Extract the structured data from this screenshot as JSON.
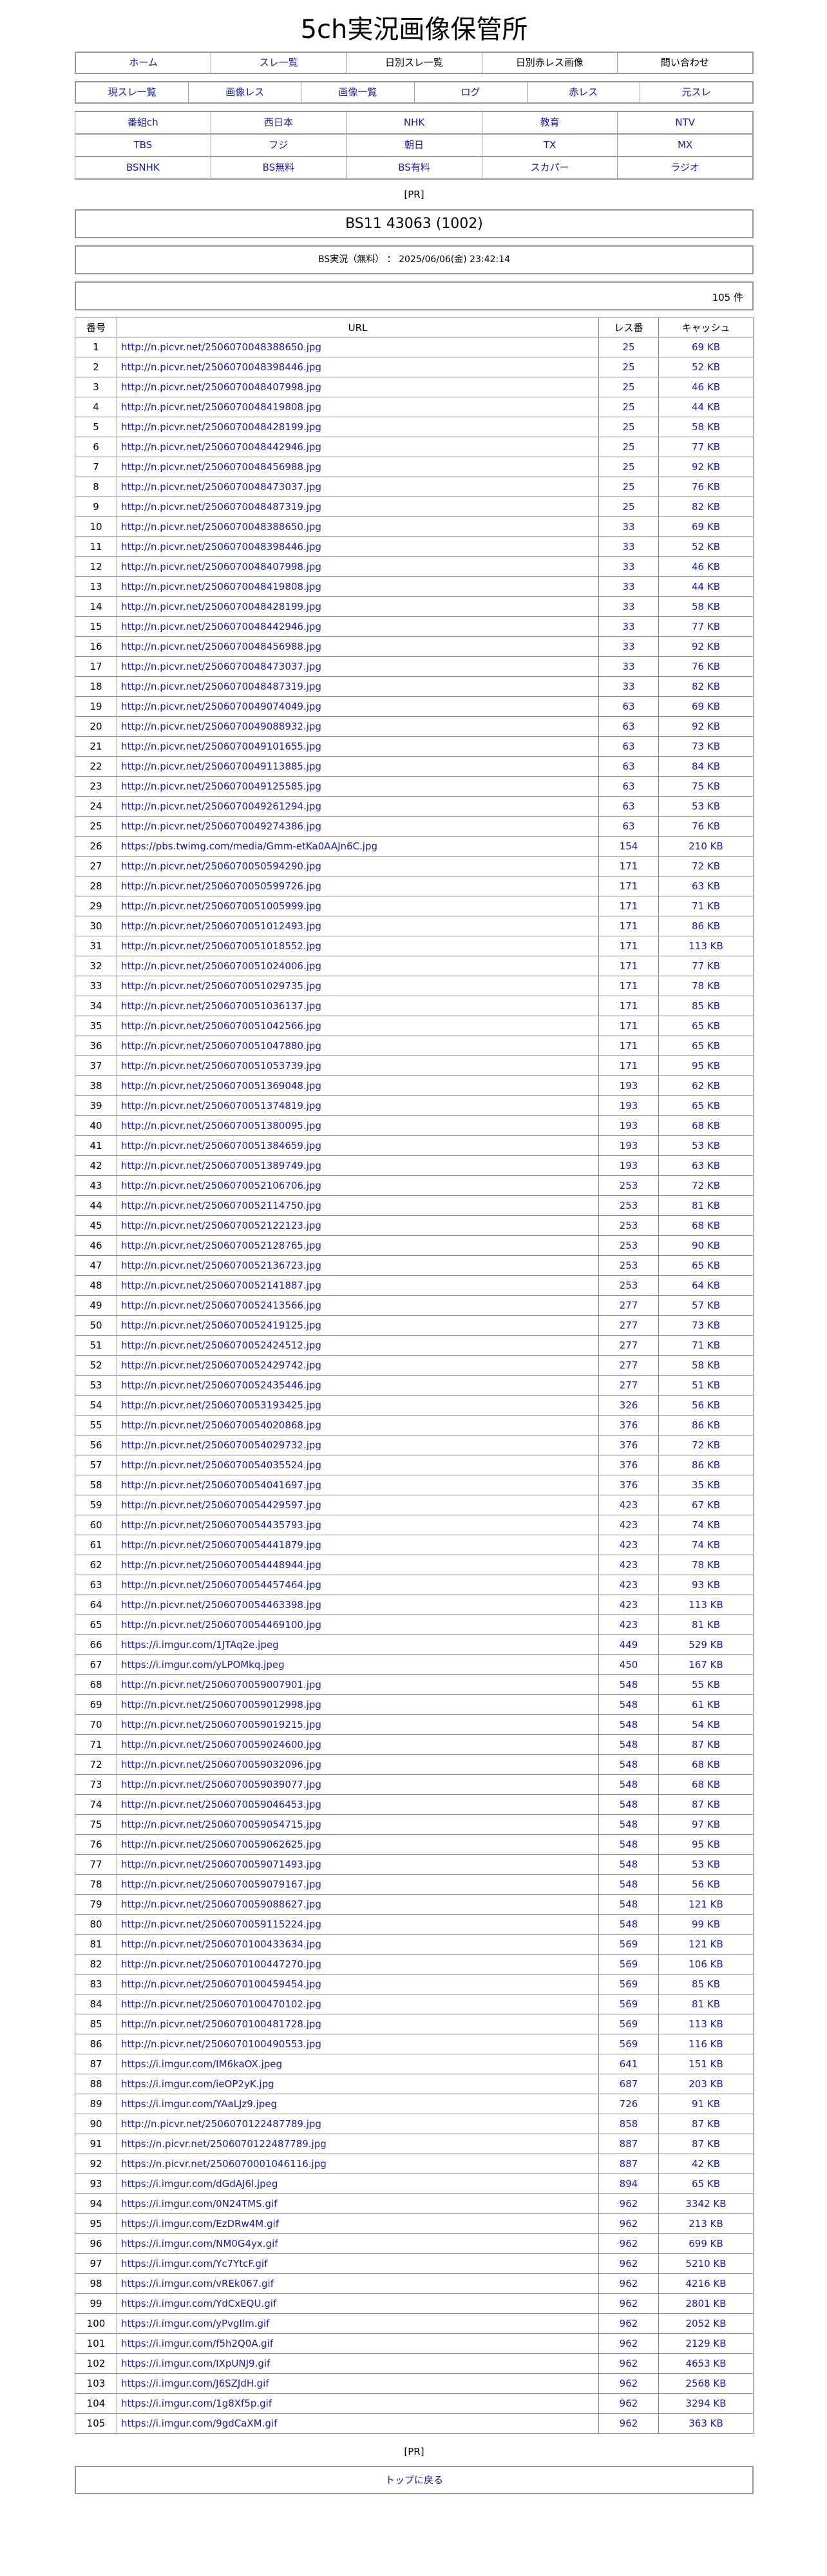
{
  "site_title": "5ch実況画像保管所",
  "nav_main": [
    {
      "label": "ホーム",
      "link": true
    },
    {
      "label": "スレ一覧",
      "link": true
    },
    {
      "label": "日別スレ一覧",
      "link": false
    },
    {
      "label": "日別赤レス画像",
      "link": false
    },
    {
      "label": "問い合わせ",
      "link": false
    }
  ],
  "nav_thread": [
    "現スレ一覧",
    "画像レス",
    "画像一覧",
    "ログ",
    "赤レス",
    "元スレ"
  ],
  "channels": [
    "番組ch",
    "西日本",
    "NHK",
    "教育",
    "NTV",
    "TBS",
    "フジ",
    "朝日",
    "TX",
    "MX",
    "BSNHK",
    "BS無料",
    "BS有料",
    "スカパー",
    "ラジオ"
  ],
  "pr_label": "[PR]",
  "thread_title": "BS11 43063 (1002)",
  "thread_info": "BS実況（無料）  ：  2025/06/06(金) 23:42:14",
  "count_label": "105 件",
  "table": {
    "headers": [
      "番号",
      "URL",
      "レス番",
      "キャッシュ"
    ],
    "rows": [
      [
        "1",
        "http://n.picvr.net/2506070048388650.jpg",
        "25",
        "69 KB"
      ],
      [
        "2",
        "http://n.picvr.net/2506070048398446.jpg",
        "25",
        "52 KB"
      ],
      [
        "3",
        "http://n.picvr.net/2506070048407998.jpg",
        "25",
        "46 KB"
      ],
      [
        "4",
        "http://n.picvr.net/2506070048419808.jpg",
        "25",
        "44 KB"
      ],
      [
        "5",
        "http://n.picvr.net/2506070048428199.jpg",
        "25",
        "58 KB"
      ],
      [
        "6",
        "http://n.picvr.net/2506070048442946.jpg",
        "25",
        "77 KB"
      ],
      [
        "7",
        "http://n.picvr.net/2506070048456988.jpg",
        "25",
        "92 KB"
      ],
      [
        "8",
        "http://n.picvr.net/2506070048473037.jpg",
        "25",
        "76 KB"
      ],
      [
        "9",
        "http://n.picvr.net/2506070048487319.jpg",
        "25",
        "82 KB"
      ],
      [
        "10",
        "http://n.picvr.net/2506070048388650.jpg",
        "33",
        "69 KB"
      ],
      [
        "11",
        "http://n.picvr.net/2506070048398446.jpg",
        "33",
        "52 KB"
      ],
      [
        "12",
        "http://n.picvr.net/2506070048407998.jpg",
        "33",
        "46 KB"
      ],
      [
        "13",
        "http://n.picvr.net/2506070048419808.jpg",
        "33",
        "44 KB"
      ],
      [
        "14",
        "http://n.picvr.net/2506070048428199.jpg",
        "33",
        "58 KB"
      ],
      [
        "15",
        "http://n.picvr.net/2506070048442946.jpg",
        "33",
        "77 KB"
      ],
      [
        "16",
        "http://n.picvr.net/2506070048456988.jpg",
        "33",
        "92 KB"
      ],
      [
        "17",
        "http://n.picvr.net/2506070048473037.jpg",
        "33",
        "76 KB"
      ],
      [
        "18",
        "http://n.picvr.net/2506070048487319.jpg",
        "33",
        "82 KB"
      ],
      [
        "19",
        "http://n.picvr.net/2506070049074049.jpg",
        "63",
        "69 KB"
      ],
      [
        "20",
        "http://n.picvr.net/2506070049088932.jpg",
        "63",
        "92 KB"
      ],
      [
        "21",
        "http://n.picvr.net/2506070049101655.jpg",
        "63",
        "73 KB"
      ],
      [
        "22",
        "http://n.picvr.net/2506070049113885.jpg",
        "63",
        "84 KB"
      ],
      [
        "23",
        "http://n.picvr.net/2506070049125585.jpg",
        "63",
        "75 KB"
      ],
      [
        "24",
        "http://n.picvr.net/2506070049261294.jpg",
        "63",
        "53 KB"
      ],
      [
        "25",
        "http://n.picvr.net/2506070049274386.jpg",
        "63",
        "76 KB"
      ],
      [
        "26",
        "https://pbs.twimg.com/media/Gmm-etKa0AAJn6C.jpg",
        "154",
        "210 KB"
      ],
      [
        "27",
        "http://n.picvr.net/2506070050594290.jpg",
        "171",
        "72 KB"
      ],
      [
        "28",
        "http://n.picvr.net/2506070050599726.jpg",
        "171",
        "63 KB"
      ],
      [
        "29",
        "http://n.picvr.net/2506070051005999.jpg",
        "171",
        "71 KB"
      ],
      [
        "30",
        "http://n.picvr.net/2506070051012493.jpg",
        "171",
        "86 KB"
      ],
      [
        "31",
        "http://n.picvr.net/2506070051018552.jpg",
        "171",
        "113 KB"
      ],
      [
        "32",
        "http://n.picvr.net/2506070051024006.jpg",
        "171",
        "77 KB"
      ],
      [
        "33",
        "http://n.picvr.net/2506070051029735.jpg",
        "171",
        "78 KB"
      ],
      [
        "34",
        "http://n.picvr.net/2506070051036137.jpg",
        "171",
        "85 KB"
      ],
      [
        "35",
        "http://n.picvr.net/2506070051042566.jpg",
        "171",
        "65 KB"
      ],
      [
        "36",
        "http://n.picvr.net/2506070051047880.jpg",
        "171",
        "65 KB"
      ],
      [
        "37",
        "http://n.picvr.net/2506070051053739.jpg",
        "171",
        "95 KB"
      ],
      [
        "38",
        "http://n.picvr.net/2506070051369048.jpg",
        "193",
        "62 KB"
      ],
      [
        "39",
        "http://n.picvr.net/2506070051374819.jpg",
        "193",
        "65 KB"
      ],
      [
        "40",
        "http://n.picvr.net/2506070051380095.jpg",
        "193",
        "68 KB"
      ],
      [
        "41",
        "http://n.picvr.net/2506070051384659.jpg",
        "193",
        "53 KB"
      ],
      [
        "42",
        "http://n.picvr.net/2506070051389749.jpg",
        "193",
        "63 KB"
      ],
      [
        "43",
        "http://n.picvr.net/2506070052106706.jpg",
        "253",
        "72 KB"
      ],
      [
        "44",
        "http://n.picvr.net/2506070052114750.jpg",
        "253",
        "81 KB"
      ],
      [
        "45",
        "http://n.picvr.net/2506070052122123.jpg",
        "253",
        "68 KB"
      ],
      [
        "46",
        "http://n.picvr.net/2506070052128765.jpg",
        "253",
        "90 KB"
      ],
      [
        "47",
        "http://n.picvr.net/2506070052136723.jpg",
        "253",
        "65 KB"
      ],
      [
        "48",
        "http://n.picvr.net/2506070052141887.jpg",
        "253",
        "64 KB"
      ],
      [
        "49",
        "http://n.picvr.net/2506070052413566.jpg",
        "277",
        "57 KB"
      ],
      [
        "50",
        "http://n.picvr.net/2506070052419125.jpg",
        "277",
        "73 KB"
      ],
      [
        "51",
        "http://n.picvr.net/2506070052424512.jpg",
        "277",
        "71 KB"
      ],
      [
        "52",
        "http://n.picvr.net/2506070052429742.jpg",
        "277",
        "58 KB"
      ],
      [
        "53",
        "http://n.picvr.net/2506070052435446.jpg",
        "277",
        "51 KB"
      ],
      [
        "54",
        "http://n.picvr.net/2506070053193425.jpg",
        "326",
        "56 KB"
      ],
      [
        "55",
        "http://n.picvr.net/2506070054020868.jpg",
        "376",
        "86 KB"
      ],
      [
        "56",
        "http://n.picvr.net/2506070054029732.jpg",
        "376",
        "72 KB"
      ],
      [
        "57",
        "http://n.picvr.net/2506070054035524.jpg",
        "376",
        "86 KB"
      ],
      [
        "58",
        "http://n.picvr.net/2506070054041697.jpg",
        "376",
        "35 KB"
      ],
      [
        "59",
        "http://n.picvr.net/2506070054429597.jpg",
        "423",
        "67 KB"
      ],
      [
        "60",
        "http://n.picvr.net/2506070054435793.jpg",
        "423",
        "74 KB"
      ],
      [
        "61",
        "http://n.picvr.net/2506070054441879.jpg",
        "423",
        "74 KB"
      ],
      [
        "62",
        "http://n.picvr.net/2506070054448944.jpg",
        "423",
        "78 KB"
      ],
      [
        "63",
        "http://n.picvr.net/2506070054457464.jpg",
        "423",
        "93 KB"
      ],
      [
        "64",
        "http://n.picvr.net/2506070054463398.jpg",
        "423",
        "113 KB"
      ],
      [
        "65",
        "http://n.picvr.net/2506070054469100.jpg",
        "423",
        "81 KB"
      ],
      [
        "66",
        "https://i.imgur.com/1JTAq2e.jpeg",
        "449",
        "529 KB"
      ],
      [
        "67",
        "https://i.imgur.com/yLPOMkq.jpeg",
        "450",
        "167 KB"
      ],
      [
        "68",
        "http://n.picvr.net/2506070059007901.jpg",
        "548",
        "55 KB"
      ],
      [
        "69",
        "http://n.picvr.net/2506070059012998.jpg",
        "548",
        "61 KB"
      ],
      [
        "70",
        "http://n.picvr.net/2506070059019215.jpg",
        "548",
        "54 KB"
      ],
      [
        "71",
        "http://n.picvr.net/2506070059024600.jpg",
        "548",
        "87 KB"
      ],
      [
        "72",
        "http://n.picvr.net/2506070059032096.jpg",
        "548",
        "68 KB"
      ],
      [
        "73",
        "http://n.picvr.net/2506070059039077.jpg",
        "548",
        "68 KB"
      ],
      [
        "74",
        "http://n.picvr.net/2506070059046453.jpg",
        "548",
        "87 KB"
      ],
      [
        "75",
        "http://n.picvr.net/2506070059054715.jpg",
        "548",
        "97 KB"
      ],
      [
        "76",
        "http://n.picvr.net/2506070059062625.jpg",
        "548",
        "95 KB"
      ],
      [
        "77",
        "http://n.picvr.net/2506070059071493.jpg",
        "548",
        "53 KB"
      ],
      [
        "78",
        "http://n.picvr.net/2506070059079167.jpg",
        "548",
        "56 KB"
      ],
      [
        "79",
        "http://n.picvr.net/2506070059088627.jpg",
        "548",
        "121 KB"
      ],
      [
        "80",
        "http://n.picvr.net/2506070059115224.jpg",
        "548",
        "99 KB"
      ],
      [
        "81",
        "http://n.picvr.net/2506070100433634.jpg",
        "569",
        "121 KB"
      ],
      [
        "82",
        "http://n.picvr.net/2506070100447270.jpg",
        "569",
        "106 KB"
      ],
      [
        "83",
        "http://n.picvr.net/2506070100459454.jpg",
        "569",
        "85 KB"
      ],
      [
        "84",
        "http://n.picvr.net/2506070100470102.jpg",
        "569",
        "81 KB"
      ],
      [
        "85",
        "http://n.picvr.net/2506070100481728.jpg",
        "569",
        "113 KB"
      ],
      [
        "86",
        "http://n.picvr.net/2506070100490553.jpg",
        "569",
        "116 KB"
      ],
      [
        "87",
        "https://i.imgur.com/IM6kaOX.jpeg",
        "641",
        "151 KB"
      ],
      [
        "88",
        "https://i.imgur.com/ieOP2yK.jpg",
        "687",
        "203 KB"
      ],
      [
        "89",
        "https://i.imgur.com/YAaLJz9.jpeg",
        "726",
        "91 KB"
      ],
      [
        "90",
        "http://n.picvr.net/2506070122487789.jpg",
        "858",
        "87 KB"
      ],
      [
        "91",
        "https://n.picvr.net/2506070122487789.jpg",
        "887",
        "87 KB"
      ],
      [
        "92",
        "https://n.picvr.net/2506070001046116.jpg",
        "887",
        "42 KB"
      ],
      [
        "93",
        "https://i.imgur.com/dGdAJ6l.jpeg",
        "894",
        "65 KB"
      ],
      [
        "94",
        "https://i.imgur.com/0N24TMS.gif",
        "962",
        "3342 KB"
      ],
      [
        "95",
        "https://i.imgur.com/EzDRw4M.gif",
        "962",
        "213 KB"
      ],
      [
        "96",
        "https://i.imgur.com/NM0G4yx.gif",
        "962",
        "699 KB"
      ],
      [
        "97",
        "https://i.imgur.com/Yc7YtcF.gif",
        "962",
        "5210 KB"
      ],
      [
        "98",
        "https://i.imgur.com/vREk067.gif",
        "962",
        "4216 KB"
      ],
      [
        "99",
        "https://i.imgur.com/YdCxEQU.gif",
        "962",
        "2801 KB"
      ],
      [
        "100",
        "https://i.imgur.com/yPvgIlm.gif",
        "962",
        "2052 KB"
      ],
      [
        "101",
        "https://i.imgur.com/f5h2Q0A.gif",
        "962",
        "2129 KB"
      ],
      [
        "102",
        "https://i.imgur.com/IXpUNJ9.gif",
        "962",
        "4653 KB"
      ],
      [
        "103",
        "https://i.imgur.com/J6SZJdH.gif",
        "962",
        "2568 KB"
      ],
      [
        "104",
        "https://i.imgur.com/1g8Xf5p.gif",
        "962",
        "3294 KB"
      ],
      [
        "105",
        "https://i.imgur.com/9gdCaXM.gif",
        "962",
        "363 KB"
      ]
    ]
  },
  "back_to_top": "トップに戻る",
  "colors": {
    "link": "#1a1aa6",
    "border": "#999999"
  }
}
